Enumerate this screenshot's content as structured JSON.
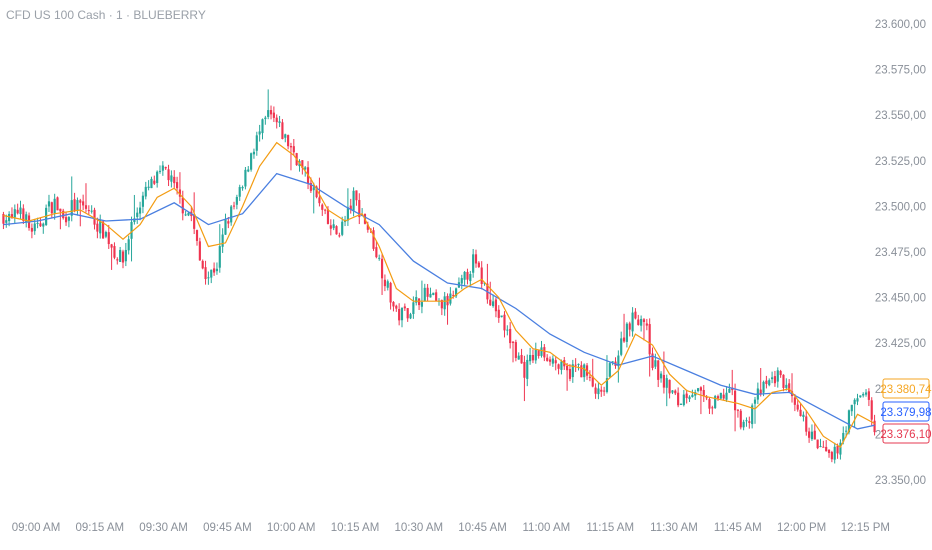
{
  "chart": {
    "title": "CFD US 100 Cash · 1 · BLUEBERRY"
  },
  "colors": {
    "up": "#26a69a",
    "down": "#ef3550",
    "fast_ma": "#f39c12",
    "slow_ma": "#4a7fe0",
    "axis_text": "#8a9099",
    "tag_orange": "#f5a623",
    "tag_blue": "#2962ff",
    "tag_red": "#e53950"
  },
  "chart_data": {
    "type": "candlestick",
    "interval": "1",
    "y_axis_ticks": [
      "23.600,00",
      "23.575,00",
      "23.550,00",
      "23.525,00",
      "23.500,00",
      "23.475,00",
      "23.450,00",
      "23.425,00",
      "23.400,00",
      "23.375,00",
      "23.350,00"
    ],
    "y_axis_values": [
      23600,
      23575,
      23550,
      23525,
      23500,
      23475,
      23450,
      23425,
      23400,
      23375,
      23350
    ],
    "ylim": [
      23342,
      23608
    ],
    "x_axis_ticks": [
      "09:00 AM",
      "09:15 AM",
      "09:30 AM",
      "09:45 AM",
      "10:00 AM",
      "10:15 AM",
      "10:30 AM",
      "10:45 AM",
      "11:00 AM",
      "11:15 AM",
      "11:30 AM",
      "11:45 AM",
      "12:00 PM",
      "12:15 PM"
    ],
    "price_tags": [
      {
        "name": "fast_ma",
        "value": "23.380,74"
      },
      {
        "name": "slow_ma",
        "value": "23.379,98"
      },
      {
        "name": "last",
        "value": "23.376,10"
      }
    ],
    "close_path": [
      [
        0,
        23495
      ],
      [
        3,
        23492
      ],
      [
        6,
        23500
      ],
      [
        9,
        23488
      ],
      [
        12,
        23487
      ],
      [
        15,
        23498
      ],
      [
        18,
        23502
      ],
      [
        21,
        23493
      ],
      [
        24,
        23500
      ],
      [
        27,
        23500
      ],
      [
        30,
        23498
      ],
      [
        33,
        23490
      ],
      [
        36,
        23485
      ],
      [
        39,
        23475
      ],
      [
        42,
        23470
      ],
      [
        45,
        23490
      ],
      [
        48,
        23502
      ],
      [
        51,
        23510
      ],
      [
        54,
        23515
      ],
      [
        57,
        23520
      ],
      [
        60,
        23510
      ],
      [
        63,
        23500
      ],
      [
        66,
        23495
      ],
      [
        69,
        23470
      ],
      [
        72,
        23462
      ],
      [
        75,
        23468
      ],
      [
        78,
        23490
      ],
      [
        81,
        23500
      ],
      [
        84,
        23510
      ],
      [
        87,
        23530
      ],
      [
        90,
        23540
      ],
      [
        93,
        23550
      ],
      [
        96,
        23545
      ],
      [
        99,
        23537
      ],
      [
        102,
        23530
      ],
      [
        105,
        23520
      ],
      [
        108,
        23512
      ],
      [
        111,
        23500
      ],
      [
        114,
        23490
      ],
      [
        117,
        23485
      ],
      [
        120,
        23492
      ],
      [
        123,
        23505
      ],
      [
        126,
        23495
      ],
      [
        129,
        23485
      ],
      [
        132,
        23470
      ],
      [
        135,
        23455
      ],
      [
        138,
        23440
      ],
      [
        141,
        23442
      ],
      [
        144,
        23445
      ],
      [
        147,
        23452
      ],
      [
        150,
        23450
      ],
      [
        153,
        23445
      ],
      [
        156,
        23448
      ],
      [
        159,
        23452
      ],
      [
        162,
        23460
      ],
      [
        165,
        23470
      ],
      [
        168,
        23460
      ],
      [
        171,
        23450
      ],
      [
        174,
        23440
      ],
      [
        177,
        23430
      ],
      [
        180,
        23420
      ],
      [
        183,
        23410
      ],
      [
        186,
        23418
      ],
      [
        189,
        23420
      ],
      [
        192,
        23418
      ],
      [
        195,
        23412
      ],
      [
        198,
        23408
      ],
      [
        201,
        23412
      ],
      [
        204,
        23410
      ],
      [
        207,
        23400
      ],
      [
        210,
        23395
      ],
      [
        213,
        23410
      ],
      [
        216,
        23420
      ],
      [
        219,
        23435
      ],
      [
        222,
        23440
      ],
      [
        225,
        23438
      ],
      [
        228,
        23415
      ],
      [
        231,
        23405
      ],
      [
        234,
        23400
      ],
      [
        237,
        23392
      ],
      [
        240,
        23398
      ],
      [
        243,
        23400
      ],
      [
        246,
        23393
      ],
      [
        249,
        23390
      ],
      [
        252,
        23395
      ],
      [
        255,
        23400
      ],
      [
        258,
        23385
      ],
      [
        261,
        23380
      ],
      [
        264,
        23395
      ],
      [
        267,
        23400
      ],
      [
        270,
        23405
      ],
      [
        273,
        23408
      ],
      [
        276,
        23395
      ],
      [
        279,
        23385
      ],
      [
        282,
        23380
      ],
      [
        285,
        23370
      ],
      [
        288,
        23365
      ],
      [
        291,
        23360
      ],
      [
        294,
        23372
      ],
      [
        297,
        23385
      ],
      [
        300,
        23395
      ],
      [
        303,
        23400
      ],
      [
        306,
        23376
      ]
    ],
    "fast_ma": [
      [
        0,
        23495
      ],
      [
        9,
        23492
      ],
      [
        18,
        23496
      ],
      [
        27,
        23498
      ],
      [
        36,
        23490
      ],
      [
        42,
        23482
      ],
      [
        48,
        23490
      ],
      [
        54,
        23505
      ],
      [
        60,
        23510
      ],
      [
        66,
        23500
      ],
      [
        72,
        23478
      ],
      [
        78,
        23480
      ],
      [
        84,
        23500
      ],
      [
        90,
        23522
      ],
      [
        96,
        23535
      ],
      [
        102,
        23528
      ],
      [
        108,
        23515
      ],
      [
        114,
        23498
      ],
      [
        120,
        23492
      ],
      [
        126,
        23496
      ],
      [
        132,
        23478
      ],
      [
        138,
        23455
      ],
      [
        144,
        23448
      ],
      [
        150,
        23448
      ],
      [
        156,
        23448
      ],
      [
        162,
        23455
      ],
      [
        168,
        23460
      ],
      [
        174,
        23450
      ],
      [
        180,
        23432
      ],
      [
        186,
        23422
      ],
      [
        192,
        23420
      ],
      [
        198,
        23413
      ],
      [
        204,
        23411
      ],
      [
        210,
        23402
      ],
      [
        216,
        23410
      ],
      [
        222,
        23430
      ],
      [
        228,
        23424
      ],
      [
        234,
        23408
      ],
      [
        240,
        23399
      ],
      [
        246,
        23396
      ],
      [
        252,
        23394
      ],
      [
        258,
        23392
      ],
      [
        264,
        23389
      ],
      [
        270,
        23398
      ],
      [
        276,
        23400
      ],
      [
        282,
        23388
      ],
      [
        288,
        23374
      ],
      [
        294,
        23368
      ],
      [
        300,
        23386
      ],
      [
        306,
        23381
      ]
    ],
    "slow_ma": [
      [
        0,
        23490
      ],
      [
        12,
        23492
      ],
      [
        24,
        23496
      ],
      [
        36,
        23492
      ],
      [
        48,
        23493
      ],
      [
        60,
        23502
      ],
      [
        72,
        23490
      ],
      [
        84,
        23496
      ],
      [
        96,
        23518
      ],
      [
        108,
        23512
      ],
      [
        120,
        23500
      ],
      [
        132,
        23490
      ],
      [
        144,
        23470
      ],
      [
        156,
        23458
      ],
      [
        168,
        23455
      ],
      [
        180,
        23444
      ],
      [
        192,
        23430
      ],
      [
        204,
        23420
      ],
      [
        216,
        23413
      ],
      [
        228,
        23418
      ],
      [
        240,
        23410
      ],
      [
        252,
        23402
      ],
      [
        264,
        23397
      ],
      [
        276,
        23398
      ],
      [
        288,
        23388
      ],
      [
        300,
        23378
      ],
      [
        306,
        23380
      ]
    ]
  }
}
